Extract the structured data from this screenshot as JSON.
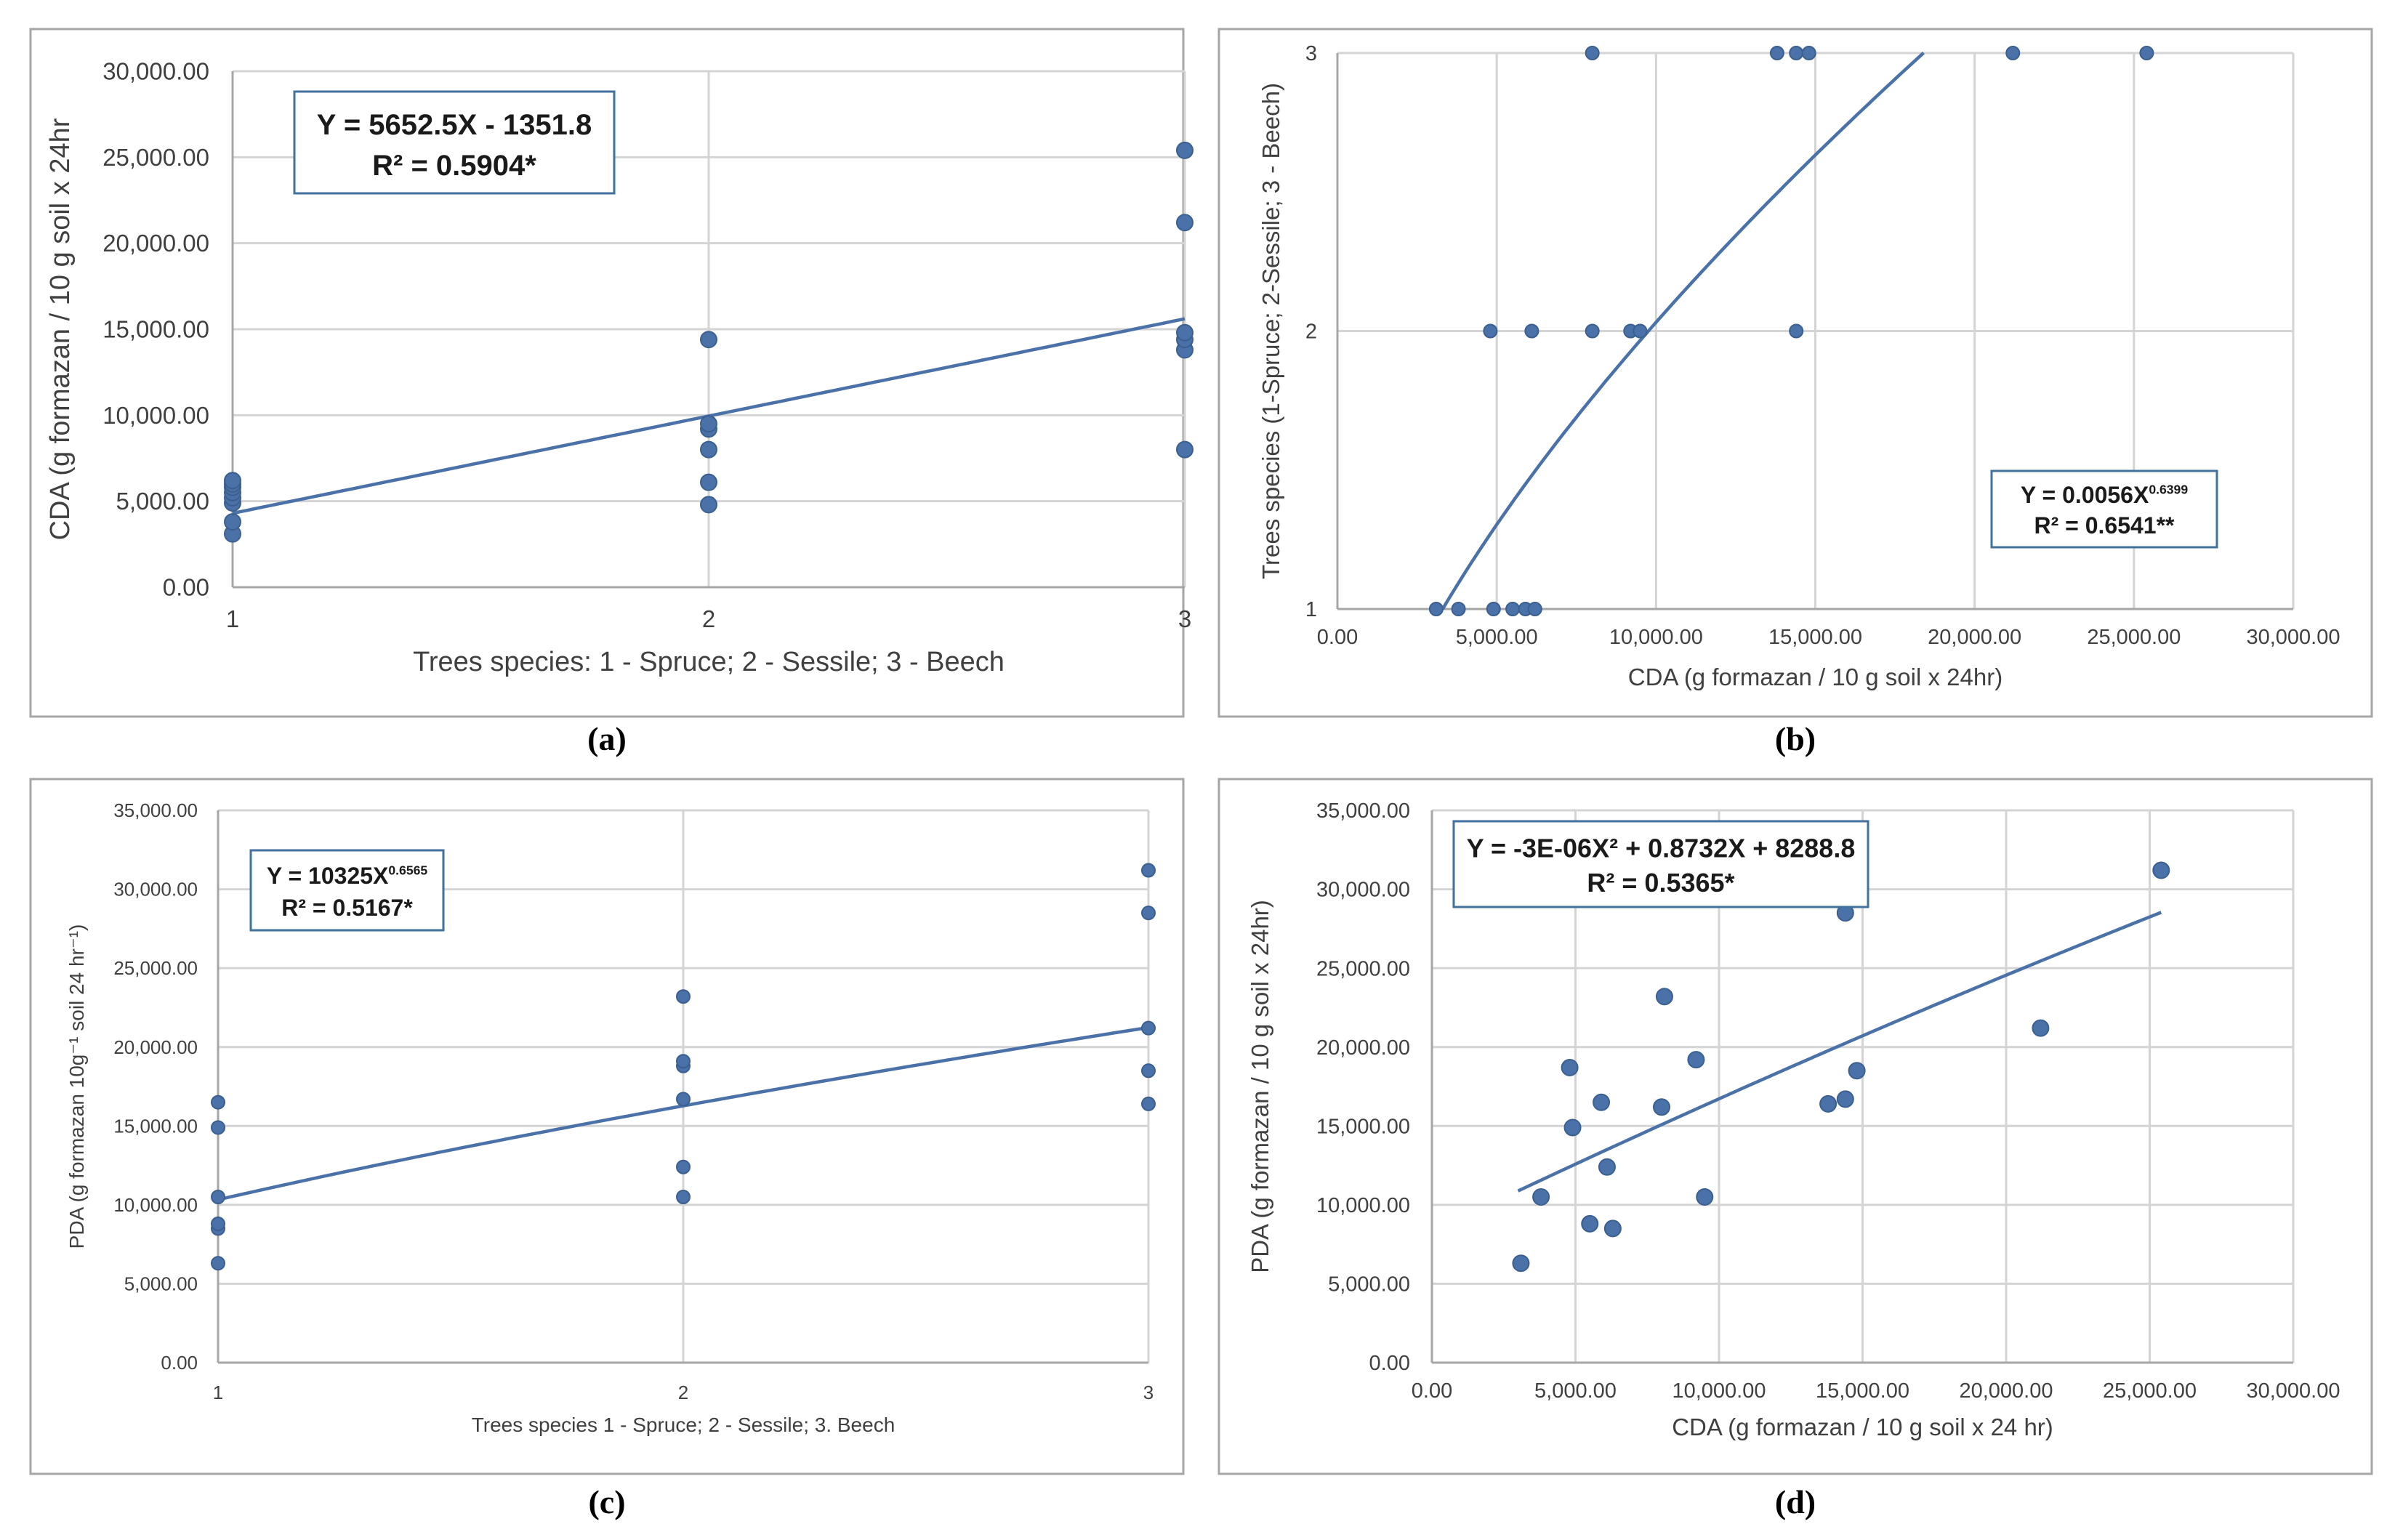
{
  "chart_data": [
    {
      "id": "a",
      "type": "scatter",
      "panel_label": "(a)",
      "title": "",
      "xlabel": "Trees species: 1 - Spruce; 2 - Sessile; 3 - Beech",
      "ylabel": "CDA (g formazan / 10 g soil x 24hr",
      "xlim": [
        1,
        3
      ],
      "ylim": [
        0,
        30000
      ],
      "x_ticks": [
        "1",
        "2",
        "3"
      ],
      "y_ticks": [
        "0.00",
        "5,000.00",
        "10,000.00",
        "15,000.00",
        "20,000.00",
        "25,000.00",
        "30,000.00"
      ],
      "points": [
        [
          1,
          3100
        ],
        [
          1,
          3800
        ],
        [
          1,
          4900
        ],
        [
          1,
          5200
        ],
        [
          1,
          5500
        ],
        [
          1,
          5800
        ],
        [
          1,
          6000
        ],
        [
          1,
          6200
        ],
        [
          2,
          4800
        ],
        [
          2,
          6100
        ],
        [
          2,
          8000
        ],
        [
          2,
          9200
        ],
        [
          2,
          9500
        ],
        [
          2,
          14400
        ],
        [
          3,
          8000
        ],
        [
          3,
          13800
        ],
        [
          3,
          14400
        ],
        [
          3,
          14800
        ],
        [
          3,
          21200
        ],
        [
          3,
          25400
        ]
      ],
      "trendline": {
        "type": "linear",
        "a": 5652.5,
        "b": -1351.8,
        "x_range": [
          1,
          3
        ]
      },
      "equation": "Y = 5652.5X - 1351.8",
      "r2": "R² = 0.5904*"
    },
    {
      "id": "b",
      "type": "scatter",
      "panel_label": "(b)",
      "title": "",
      "xlabel": "CDA (g formazan / 10 g soil x 24hr)",
      "ylabel": "Trees species (1-Spruce; 2-Sessile; 3 - Beech)",
      "xlim": [
        0,
        30000
      ],
      "ylim": [
        1,
        3
      ],
      "x_ticks": [
        "0.00",
        "5,000.00",
        "10,000.00",
        "15,000.00",
        "20,000.00",
        "25,000.00",
        "30,000.00"
      ],
      "y_ticks": [
        "1",
        "2",
        "3"
      ],
      "points": [
        [
          3100,
          1
        ],
        [
          3800,
          1
        ],
        [
          4900,
          1
        ],
        [
          5500,
          1
        ],
        [
          5900,
          1
        ],
        [
          6200,
          1
        ],
        [
          4800,
          2
        ],
        [
          6100,
          2
        ],
        [
          8000,
          2
        ],
        [
          9200,
          2
        ],
        [
          9500,
          2
        ],
        [
          14400,
          2
        ],
        [
          8000,
          3
        ],
        [
          13800,
          3
        ],
        [
          14400,
          3
        ],
        [
          14800,
          3
        ],
        [
          21200,
          3
        ],
        [
          25400,
          3
        ]
      ],
      "trendline": {
        "type": "power",
        "coef": 0.0056,
        "exp": 0.6399,
        "x_range": [
          3300,
          18400
        ]
      },
      "equation": "Y = 0.0056X",
      "equation_exp": "0.6399",
      "r2": "R² = 0.6541**"
    },
    {
      "id": "c",
      "type": "scatter",
      "panel_label": "(c)",
      "title": "",
      "xlabel": "Trees species 1 - Spruce; 2 - Sessile; 3. Beech",
      "ylabel": "PDA (g formazan 10g⁻¹ soil 24 hr⁻¹)",
      "xlim": [
        1,
        3
      ],
      "ylim": [
        0,
        35000
      ],
      "x_ticks": [
        "1",
        "2",
        "3"
      ],
      "y_ticks": [
        "0.00",
        "5,000.00",
        "10,000.00",
        "15,000.00",
        "20,000.00",
        "25,000.00",
        "30,000.00",
        "35,000.00"
      ],
      "points": [
        [
          1,
          6300
        ],
        [
          1,
          8500
        ],
        [
          1,
          8800
        ],
        [
          1,
          10500
        ],
        [
          1,
          14900
        ],
        [
          1,
          16500
        ],
        [
          2,
          10500
        ],
        [
          2,
          12400
        ],
        [
          2,
          16700
        ],
        [
          2,
          18800
        ],
        [
          2,
          19100
        ],
        [
          2,
          23200
        ],
        [
          3,
          16400
        ],
        [
          3,
          18500
        ],
        [
          3,
          21200
        ],
        [
          3,
          28500
        ],
        [
          3,
          31200
        ]
      ],
      "trendline": {
        "type": "power",
        "coef": 10325,
        "exp": 0.6565,
        "x_range": [
          1,
          3
        ]
      },
      "equation": "Y = 10325X",
      "equation_exp": "0.6565",
      "r2": "R² = 0.5167*"
    },
    {
      "id": "d",
      "type": "scatter",
      "panel_label": "(d)",
      "title": "",
      "xlabel": "CDA (g formazan / 10 g soil x 24 hr)",
      "ylabel": "PDA (g formazan / 10 g soil x 24hr)",
      "xlim": [
        0,
        30000
      ],
      "ylim": [
        0,
        35000
      ],
      "x_ticks": [
        "0.00",
        "5,000.00",
        "10,000.00",
        "15,000.00",
        "20,000.00",
        "25,000.00",
        "30,000.00"
      ],
      "y_ticks": [
        "0.00",
        "5,000.00",
        "10,000.00",
        "15,000.00",
        "20,000.00",
        "25,000.00",
        "30,000.00",
        "35,000.00"
      ],
      "points": [
        [
          3100,
          6300
        ],
        [
          3800,
          10500
        ],
        [
          4800,
          18700
        ],
        [
          4900,
          14900
        ],
        [
          5500,
          8800
        ],
        [
          5900,
          16500
        ],
        [
          6100,
          12400
        ],
        [
          6300,
          8500
        ],
        [
          8000,
          16200
        ],
        [
          8100,
          23200
        ],
        [
          9200,
          19200
        ],
        [
          9500,
          10500
        ],
        [
          13800,
          16400
        ],
        [
          14400,
          28500
        ],
        [
          14400,
          16700
        ],
        [
          14800,
          18500
        ],
        [
          21200,
          21200
        ],
        [
          25400,
          31200
        ]
      ],
      "trendline": {
        "type": "poly2",
        "a": -3e-06,
        "b": 0.8732,
        "c": 8288.8,
        "x_range": [
          3000,
          25400
        ]
      },
      "equation": "Y = -3E-06X² + 0.8732X + 8288.8",
      "r2": "R² = 0.5365*"
    }
  ]
}
